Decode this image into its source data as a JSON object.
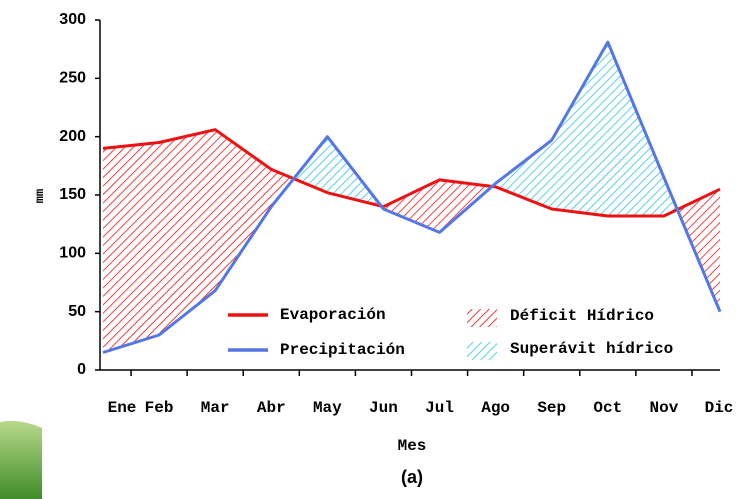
{
  "chart_data": {
    "type": "line",
    "categories": [
      "Ene",
      "Feb",
      "Mar",
      "Abr",
      "May",
      "Jun",
      "Jul",
      "Ago",
      "Sep",
      "Oct",
      "Nov",
      "Dic"
    ],
    "series": [
      {
        "name": "Evaporación",
        "color": "#ee1111",
        "values": [
          190,
          195,
          206,
          172,
          152,
          140,
          163,
          157,
          138,
          132,
          132,
          155
        ]
      },
      {
        "name": "Precipitación",
        "color": "#5577e6",
        "values": [
          15,
          30,
          68,
          140,
          200,
          138,
          118,
          160,
          197,
          281,
          165,
          50
        ]
      }
    ],
    "fills": [
      {
        "name": "Déficit Hídrico",
        "color": "#ee1111"
      },
      {
        "name": "Superávit hídrico",
        "color": "#33c3e6"
      }
    ],
    "ylim": [
      0,
      300
    ],
    "yticks": [
      0,
      50,
      100,
      150,
      200,
      250,
      300
    ],
    "xlabel": "Mes",
    "ylabel": "mm",
    "caption": "(a)"
  }
}
